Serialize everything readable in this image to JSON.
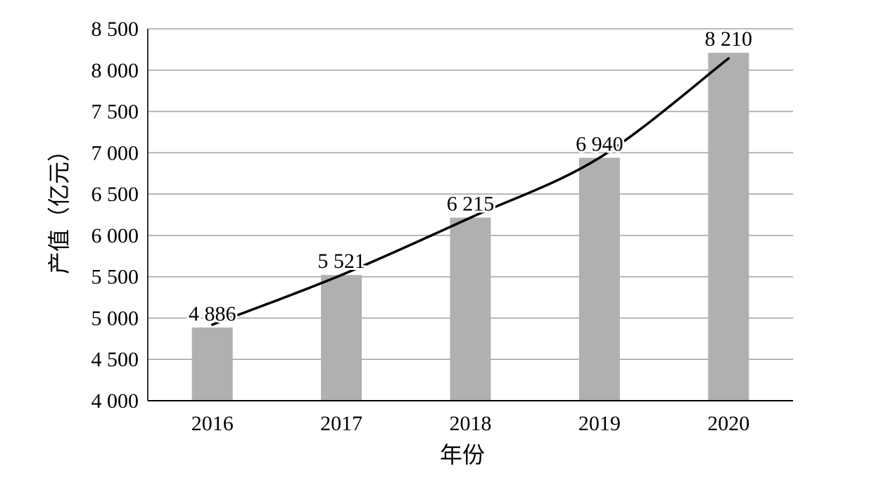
{
  "chart_data": {
    "type": "bar",
    "categories": [
      "2016",
      "2017",
      "2018",
      "2019",
      "2020"
    ],
    "values": [
      4886,
      5521,
      6215,
      6940,
      8210
    ],
    "data_labels": [
      "4 886",
      "5 521",
      "6 215",
      "6 940",
      "8 210"
    ],
    "xlabel": "年份",
    "ylabel": "产值（亿元）",
    "ylim": [
      4000,
      8500
    ],
    "yticks": [
      4000,
      4500,
      5000,
      5500,
      6000,
      6500,
      7000,
      7500,
      8000,
      8500
    ],
    "ytick_labels": [
      "4 000",
      "4 500",
      "5 000",
      "5 500",
      "6 000",
      "6 500",
      "7 000",
      "7 500",
      "8 000",
      "8 500"
    ],
    "grid": true,
    "trendline": "curve through bar tops",
    "colors": {
      "bar": "#b0b0b0",
      "grid": "#a6a6a6",
      "axis": "#000000",
      "trend": "#000000"
    }
  }
}
